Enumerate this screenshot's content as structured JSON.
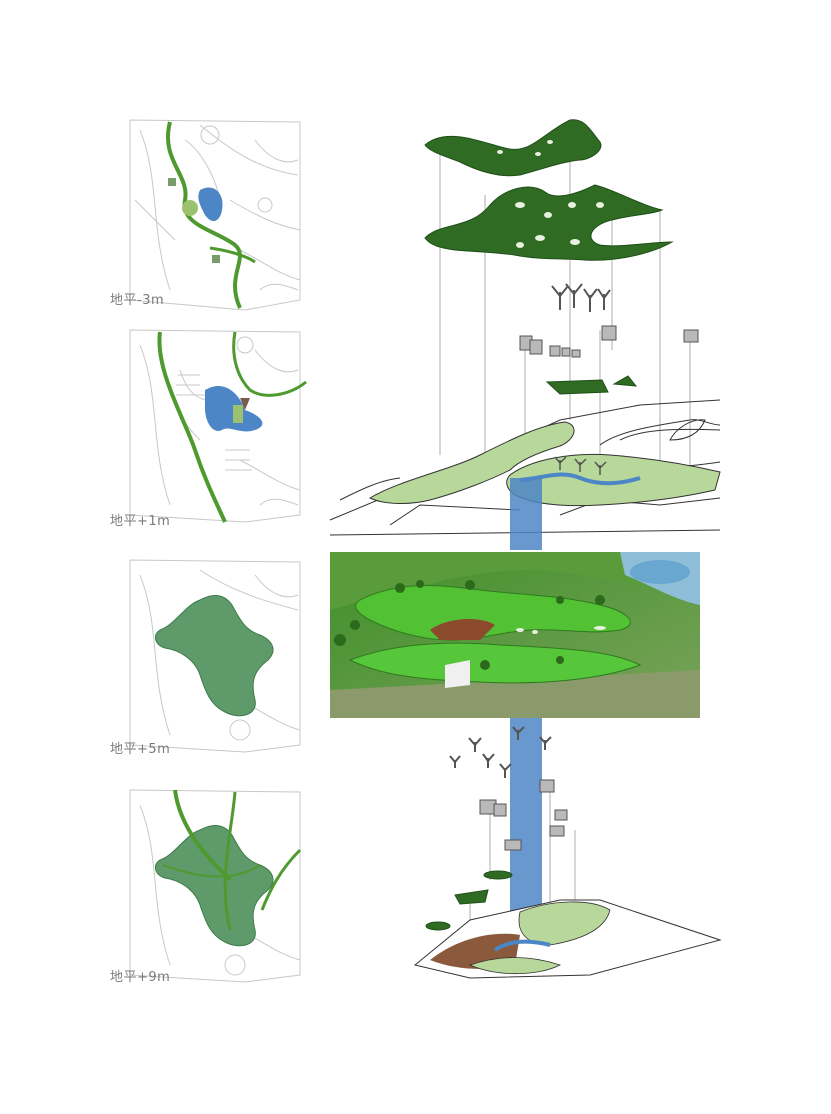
{
  "levels": [
    {
      "label": "地平-3m"
    },
    {
      "label": "地平+1m"
    },
    {
      "label": "地平+5m"
    },
    {
      "label": "地平+9m"
    }
  ],
  "colors": {
    "roof_dark": "#2f6b23",
    "lawn_light": "#b7d89a",
    "green_line": "#4e9a2f",
    "water_blue": "#4d86c6",
    "plan_fill": "#5e9a6a",
    "soil_brown": "#8b5a3c",
    "line_gray": "#bdbdbd"
  }
}
